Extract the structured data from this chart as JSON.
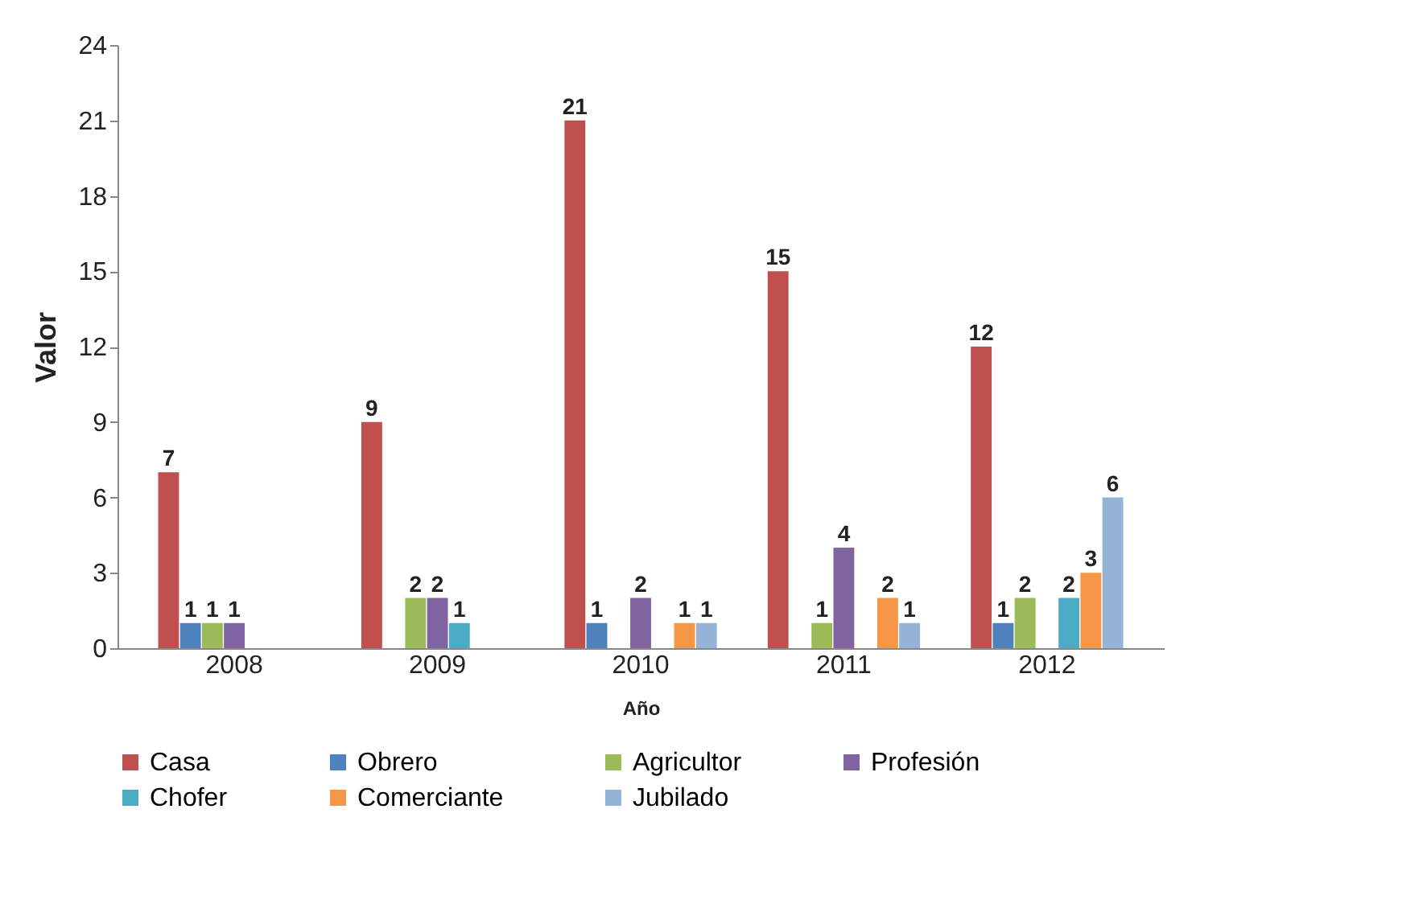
{
  "chart_data": {
    "type": "bar",
    "xlabel": "Año",
    "ylabel": "Valor",
    "categories": [
      "2008",
      "2009",
      "2010",
      "2011",
      "2012"
    ],
    "ylim": [
      0,
      24
    ],
    "yticks": [
      0,
      3,
      6,
      9,
      12,
      15,
      18,
      21,
      24
    ],
    "grid": false,
    "legend": "bottom",
    "series": [
      {
        "name": "Casa",
        "color": "#c0504d",
        "values": [
          7,
          9,
          21,
          15,
          12
        ],
        "value_labels": [
          "7",
          "9",
          "21",
          "15",
          "12"
        ]
      },
      {
        "name": "Obrero",
        "color": "#4f81bd",
        "values": [
          1,
          0,
          1,
          0,
          1
        ],
        "value_labels": [
          "1",
          null,
          "1",
          null,
          "1"
        ]
      },
      {
        "name": "Agricultor",
        "color": "#9bbb59",
        "values": [
          1,
          2,
          0,
          1,
          2
        ],
        "value_labels": [
          "1",
          "2",
          null,
          "1",
          "2"
        ]
      },
      {
        "name": "Profesión",
        "color": "#8064a2",
        "values": [
          1,
          2,
          2,
          4,
          0
        ],
        "value_labels": [
          "1",
          "2",
          "2",
          "4",
          null
        ]
      },
      {
        "name": "Chofer",
        "color": "#4bacc6",
        "values": [
          0,
          1,
          0,
          0,
          2
        ],
        "value_labels": [
          null,
          "1",
          null,
          null,
          "2"
        ]
      },
      {
        "name": "Comerciante",
        "color": "#f79646",
        "values": [
          0,
          0,
          1,
          2,
          3
        ],
        "value_labels": [
          null,
          null,
          "1",
          "2",
          "3"
        ]
      },
      {
        "name": "Jubilado",
        "color": "#95b3d7",
        "values": [
          0,
          0,
          1,
          1,
          6
        ],
        "value_labels": [
          null,
          null,
          "1",
          "1",
          "6"
        ]
      }
    ]
  }
}
